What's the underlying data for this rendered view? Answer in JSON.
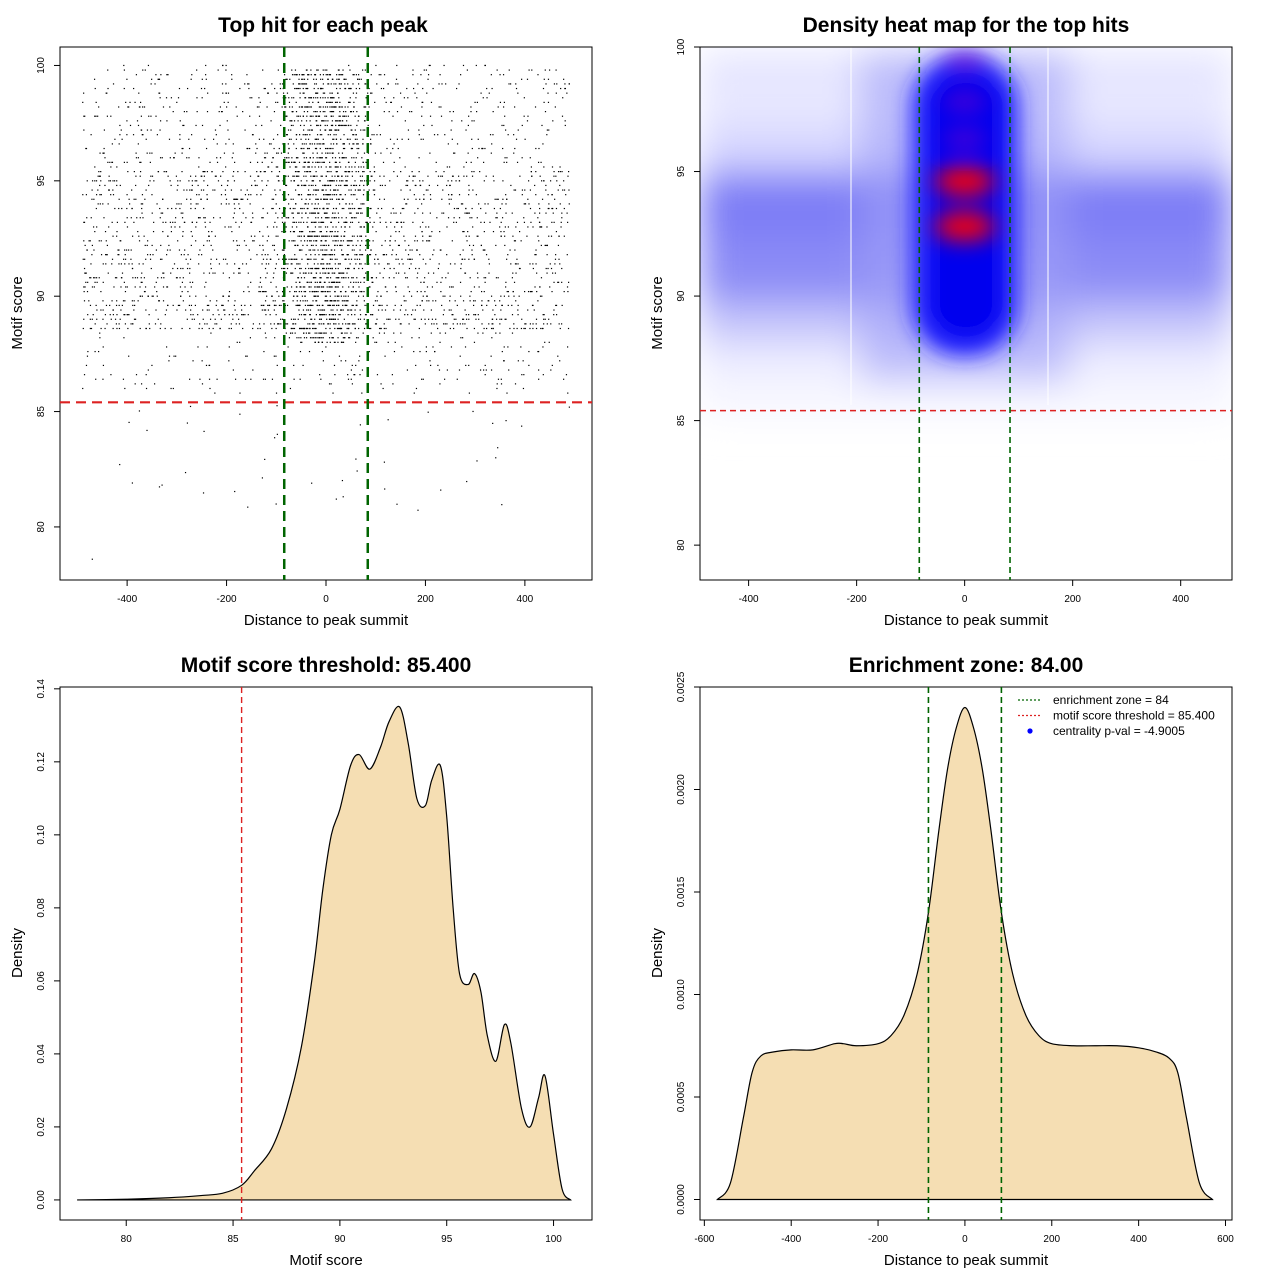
{
  "chart_data": [
    {
      "type": "scatter",
      "title": "Top hit for each peak",
      "xlabel": "Distance to peak summit",
      "ylabel": "Motif score",
      "xlim": [
        -535,
        535
      ],
      "ylim": [
        77.7,
        100.8
      ],
      "xticks": [
        "-400",
        "-200",
        "0",
        "200",
        "400"
      ],
      "yticks": [
        "80",
        "85",
        "90",
        "95",
        "100"
      ],
      "threshold_line": {
        "y": 85.4,
        "color": "#dd2222",
        "style": "dashed"
      },
      "zone_lines": {
        "x": [
          -84,
          84
        ],
        "color": "#006400",
        "style": "dashed"
      },
      "points_summary": {
        "x_range": [
          -490,
          490
        ],
        "y_main_range": [
          85.8,
          100
        ],
        "y_outliers_min": 78.6
      }
    },
    {
      "type": "heatmap",
      "title": "Density heat map for the top hits",
      "xlabel": "Distance to peak summit",
      "ylabel": "Motif score",
      "xlim": [
        -490,
        495
      ],
      "ylim": [
        78.6,
        100
      ],
      "xticks": [
        "-400",
        "-200",
        "0",
        "200",
        "400"
      ],
      "yticks": [
        "80",
        "85",
        "90",
        "95",
        "100"
      ],
      "threshold_line": {
        "y": 85.4,
        "color": "#dd2222",
        "style": "dashed"
      },
      "zone_lines": {
        "x": [
          -84,
          84
        ],
        "color": "#006400",
        "style": "dashed"
      },
      "colors": [
        "#ffffff",
        "#0000ff",
        "#ff0000"
      ],
      "hotspots": [
        {
          "x": 0,
          "y": 92.8,
          "level": "high"
        },
        {
          "x": 0,
          "y": 94.6,
          "level": "high"
        },
        {
          "x": 0,
          "y": 96.3,
          "level": "medium"
        },
        {
          "x": 0,
          "y": 97.8,
          "level": "medium"
        },
        {
          "x": 0,
          "y": 99.4,
          "level": "medium"
        }
      ]
    },
    {
      "type": "area",
      "title": "Motif score threshold: 85.400",
      "xlabel": "Motif score",
      "ylabel": "Density",
      "xlim": [
        76.9,
        101.8
      ],
      "ylim": [
        -0.0055,
        0.1405
      ],
      "xticks": [
        "80",
        "85",
        "90",
        "95",
        "100"
      ],
      "yticks": [
        "0.00",
        "0.02",
        "0.04",
        "0.06",
        "0.08",
        "0.10",
        "0.12",
        "0.14"
      ],
      "fill": "#f5deb3",
      "threshold_line": {
        "x": 85.4,
        "color": "#dd2222",
        "style": "dashed"
      },
      "x": [
        77.7,
        80,
        82,
        83.5,
        84.5,
        85.4,
        86,
        86.8,
        87.5,
        88.2,
        88.8,
        89.2,
        89.6,
        90.0,
        90.5,
        90.9,
        91.4,
        91.9,
        92.3,
        92.8,
        93.2,
        93.6,
        94.0,
        94.3,
        94.7,
        95.0,
        95.3,
        95.6,
        96.0,
        96.3,
        96.6,
        96.9,
        97.3,
        97.7,
        98.0,
        98.5,
        98.9,
        99.3,
        99.6,
        100.0,
        100.4,
        100.8
      ],
      "y": [
        0,
        0.0002,
        0.0006,
        0.0012,
        0.0018,
        0.004,
        0.008,
        0.014,
        0.025,
        0.042,
        0.065,
        0.085,
        0.1,
        0.107,
        0.119,
        0.122,
        0.118,
        0.124,
        0.131,
        0.135,
        0.125,
        0.11,
        0.108,
        0.115,
        0.119,
        0.105,
        0.08,
        0.062,
        0.059,
        0.062,
        0.057,
        0.045,
        0.038,
        0.048,
        0.043,
        0.025,
        0.02,
        0.028,
        0.034,
        0.018,
        0.003,
        0
      ]
    },
    {
      "type": "area",
      "title": "Enrichment zone: 84.00",
      "xlabel": "Distance to peak summit",
      "ylabel": "Density",
      "xlim": [
        -610,
        615
      ],
      "ylim": [
        -0.0001,
        0.0025
      ],
      "xticks": [
        "-600",
        "-400",
        "-200",
        "0",
        "200",
        "400",
        "600"
      ],
      "yticks": [
        "0.0000",
        "0.0005",
        "0.0010",
        "0.0015",
        "0.0020",
        "0.0025"
      ],
      "fill": "#f5deb3",
      "zone_lines": {
        "x": [
          -84,
          84
        ],
        "color": "#006400",
        "style": "dashed"
      },
      "x": [
        -570,
        -540,
        -510,
        -490,
        -470,
        -440,
        -400,
        -350,
        -300,
        -280,
        -250,
        -200,
        -170,
        -140,
        -110,
        -84,
        -60,
        -40,
        -20,
        0,
        20,
        40,
        60,
        84,
        110,
        140,
        170,
        200,
        250,
        300,
        350,
        400,
        440,
        470,
        490,
        510,
        540,
        570
      ],
      "y": [
        0,
        8e-05,
        0.0004,
        0.00062,
        0.0007,
        0.00072,
        0.00073,
        0.00073,
        0.00076,
        0.00076,
        0.00075,
        0.00076,
        0.0008,
        0.0009,
        0.0011,
        0.0014,
        0.0018,
        0.0021,
        0.0023,
        0.0024,
        0.0023,
        0.0021,
        0.0018,
        0.0014,
        0.0011,
        0.0009,
        0.0008,
        0.00076,
        0.00075,
        0.00075,
        0.00075,
        0.00074,
        0.00072,
        0.00069,
        0.00062,
        0.0004,
        8e-05,
        0
      ],
      "legend": {
        "position": "top-right",
        "entries": [
          {
            "label": "enrichment zone = 84",
            "color": "#006400",
            "style": "dotted"
          },
          {
            "label": "motif score threshold = 85.400",
            "color": "#dd2222",
            "style": "dotted"
          },
          {
            "label": "centrality p-val = -4.9005",
            "color": "#0000ff",
            "style": "point"
          }
        ]
      }
    }
  ]
}
